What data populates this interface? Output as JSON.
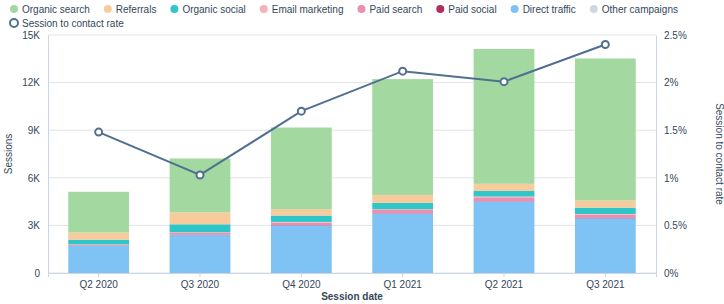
{
  "chart_data": {
    "type": "bar",
    "stacked": true,
    "grid": true,
    "legend": "top",
    "x_label": "Session date",
    "y_label": "Sessions",
    "y2_label": "Session to contact rate",
    "categories": [
      "Q2 2020",
      "Q3 2020",
      "Q4 2020",
      "Q1 2021",
      "Q2 2021",
      "Q3 2021"
    ],
    "ylim": [
      0,
      15000
    ],
    "yticks": [
      {
        "value": 0,
        "label": "0"
      },
      {
        "value": 3000,
        "label": "3K"
      },
      {
        "value": 6000,
        "label": "6K"
      },
      {
        "value": 9000,
        "label": "9K"
      },
      {
        "value": 12000,
        "label": "12K"
      },
      {
        "value": 15000,
        "label": "15K"
      }
    ],
    "y2lim": [
      0,
      2.5
    ],
    "y2ticks": [
      {
        "value": 0,
        "label": "0%"
      },
      {
        "value": 0.5,
        "label": "0.5%"
      },
      {
        "value": 1,
        "label": "1%"
      },
      {
        "value": 1.5,
        "label": "1.5%"
      },
      {
        "value": 2,
        "label": "2%"
      },
      {
        "value": 2.5,
        "label": "2.5%"
      }
    ],
    "series": [
      {
        "name": "Organic search",
        "type": "bar",
        "color": "#a3d9a0",
        "values": [
          2570,
          3400,
          5150,
          7300,
          8500,
          8950
        ]
      },
      {
        "name": "Referrals",
        "type": "bar",
        "color": "#f8cb9c",
        "values": [
          450,
          750,
          400,
          500,
          450,
          450
        ]
      },
      {
        "name": "Organic social",
        "type": "bar",
        "color": "#2fc6c9",
        "values": [
          300,
          500,
          400,
          400,
          350,
          400
        ]
      },
      {
        "name": "Email marketing",
        "type": "bar",
        "color": "#f5b2b8",
        "values": [
          30,
          50,
          50,
          50,
          50,
          50
        ]
      },
      {
        "name": "Paid search",
        "type": "bar",
        "color": "#ea8fb0",
        "values": [
          50,
          100,
          150,
          200,
          250,
          200
        ]
      },
      {
        "name": "Paid social",
        "type": "bar",
        "color": "#b32b5f",
        "values": [
          20,
          20,
          20,
          20,
          20,
          20
        ]
      },
      {
        "name": "Direct traffic",
        "type": "bar",
        "color": "#7fc3f4",
        "values": [
          1700,
          2400,
          3000,
          3750,
          4500,
          3450
        ]
      },
      {
        "name": "Other campaigns",
        "type": "bar",
        "color": "#cfd7e0",
        "values": [
          0,
          0,
          0,
          0,
          0,
          0
        ]
      },
      {
        "name": "Session to contact rate",
        "type": "line",
        "axis": "y2",
        "marker": "circle",
        "line_style": "solid",
        "color": "#516f90",
        "values": [
          1.48,
          1.03,
          1.7,
          2.12,
          2.01,
          2.4
        ]
      }
    ]
  }
}
